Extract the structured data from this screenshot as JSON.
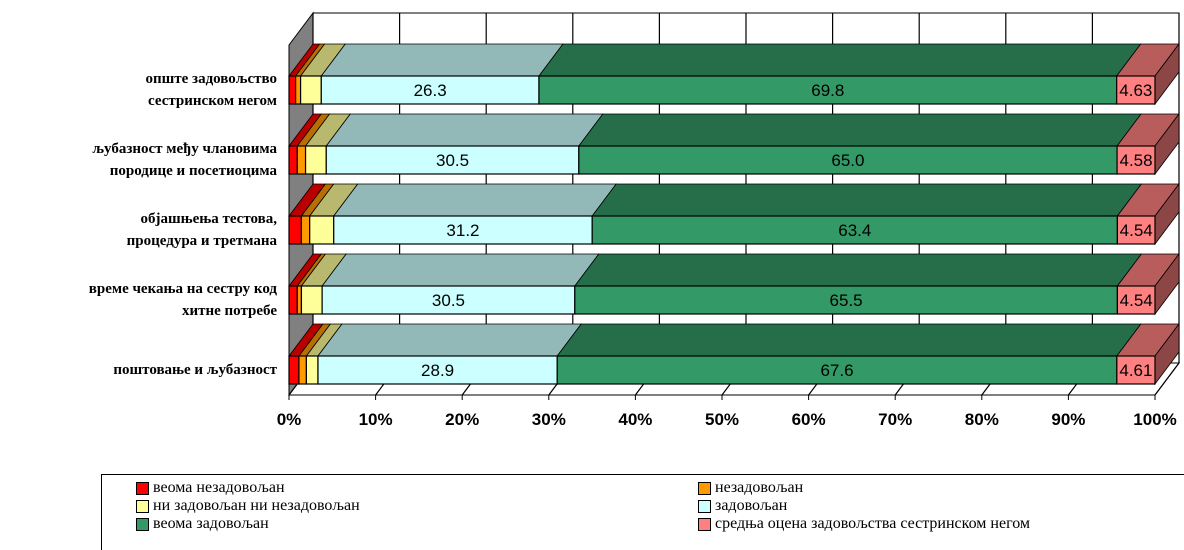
{
  "chart_data": {
    "type": "bar",
    "orientation": "horizontal",
    "stacked": "percent",
    "three_d": true,
    "categories": [
      "поштовање и љубазност",
      "време чекања на сестру код хитне потребе",
      "објашњења тестова, процедура и третмана",
      "љубазност међу члановима породице и посетиоцима",
      "опште задовољство сестринском негом"
    ],
    "category_lines": [
      [
        "поштовање и љубазност"
      ],
      [
        "време чекања на сестру код",
        "хитне потребе"
      ],
      [
        "објашњења тестова,",
        "процедура и третмана"
      ],
      [
        "љубазност међу члановима",
        "породице и посетиоцима"
      ],
      [
        "опште задовољство",
        "сестринском негом"
      ]
    ],
    "series": [
      {
        "name": "веома незадовољан",
        "color": "#ff0000",
        "values": [
          1.2,
          1.0,
          1.5,
          1.0,
          0.8
        ],
        "labels": [
          "",
          "",
          "",
          "",
          ""
        ]
      },
      {
        "name": "незадовољан",
        "color": "#ff9900",
        "values": [
          0.9,
          0.5,
          1.0,
          1.0,
          0.6
        ],
        "labels": [
          "",
          "",
          "",
          "",
          ""
        ]
      },
      {
        "name": "ни задовољан ни незадовољан",
        "color": "#ffff99",
        "values": [
          1.4,
          2.5,
          2.9,
          2.5,
          2.5
        ],
        "labels": [
          "",
          "",
          "",
          "",
          ""
        ]
      },
      {
        "name": "задовољан",
        "color": "#ccffff",
        "values": [
          28.9,
          30.5,
          31.2,
          30.5,
          26.3
        ],
        "labels": [
          "28.9",
          "30.5",
          "31.2",
          "30.5",
          "26.3"
        ]
      },
      {
        "name": "веома задовољан",
        "color": "#339966",
        "values": [
          67.6,
          65.5,
          63.4,
          65.0,
          69.8
        ],
        "labels": [
          "67.6",
          "65.5",
          "63.4",
          "65.0",
          "69.8"
        ]
      },
      {
        "name": "средња оцена задовољства сестринском негом",
        "color": "#ff8080",
        "values": [
          4.61,
          4.54,
          4.54,
          4.58,
          4.63
        ],
        "labels": [
          "4.61",
          "4.54",
          "4.54",
          "4.58",
          "4.63"
        ]
      }
    ],
    "x_ticks": [
      "0%",
      "10%",
      "20%",
      "30%",
      "40%",
      "50%",
      "60%",
      "70%",
      "80%",
      "90%",
      "100%"
    ],
    "xlim": [
      0,
      100
    ],
    "grid": true,
    "legend_position": "bottom"
  }
}
